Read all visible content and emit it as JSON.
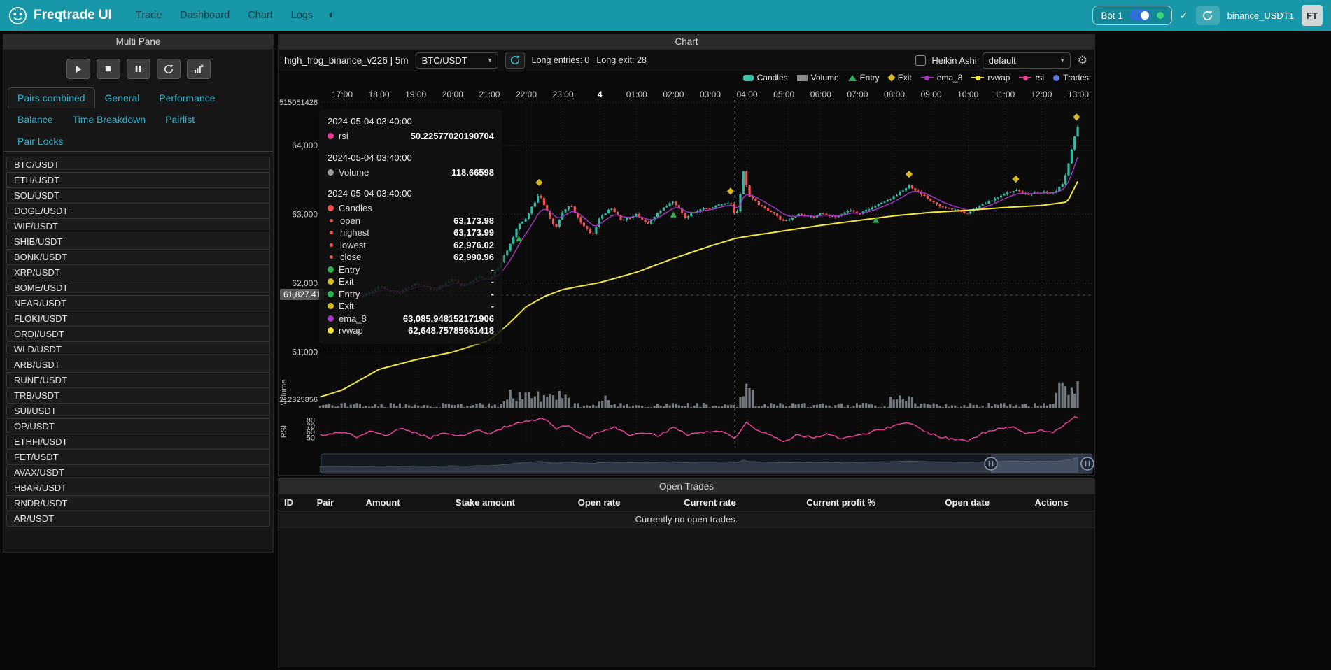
{
  "navbar": {
    "brand": "Freqtrade UI",
    "items": [
      "Trade",
      "Dashboard",
      "Chart",
      "Logs"
    ],
    "bot_label": "Bot 1",
    "check": "✓",
    "exchange_label": "binance_USDT1",
    "avatar": "FT"
  },
  "sidebar": {
    "header": "Multi Pane",
    "controls": [
      "play",
      "stop",
      "pause",
      "reload",
      "chart-remove"
    ],
    "tabs": [
      "Pairs combined",
      "General",
      "Performance",
      "Balance",
      "Time Breakdown",
      "Pairlist",
      "Pair Locks"
    ],
    "active_tab": "Pairs combined",
    "pairs": [
      "BTC/USDT",
      "ETH/USDT",
      "SOL/USDT",
      "DOGE/USDT",
      "WIF/USDT",
      "SHIB/USDT",
      "BONK/USDT",
      "XRP/USDT",
      "BOME/USDT",
      "NEAR/USDT",
      "FLOKI/USDT",
      "ORDI/USDT",
      "WLD/USDT",
      "ARB/USDT",
      "RUNE/USDT",
      "TRB/USDT",
      "SUI/USDT",
      "OP/USDT",
      "ETHFI/USDT",
      "FET/USDT",
      "AVAX/USDT",
      "HBAR/USDT",
      "RNDR/USDT",
      "AR/USDT"
    ]
  },
  "chart": {
    "header": "Chart",
    "strategy_label": "high_frog_binance_v226 | 5m",
    "pair": "BTC/USDT",
    "long_entries": "Long entries: 0",
    "long_exits": "Long exit: 28",
    "heikin_ashi": "Heikin Ashi",
    "plot_config": "default",
    "legend": [
      {
        "label": "Candles",
        "color": "#3fc1ae",
        "shape": "candles"
      },
      {
        "label": "Volume",
        "color": "#8d8d8d",
        "shape": "rect"
      },
      {
        "label": "Entry",
        "color": "#2db253",
        "shape": "triangle"
      },
      {
        "label": "Exit",
        "color": "#d8ba25",
        "shape": "diamond"
      },
      {
        "label": "ema_8",
        "color": "#a637c8",
        "shape": "line"
      },
      {
        "label": "rvwap",
        "color": "#f2e63c",
        "shape": "line"
      },
      {
        "label": "rsi",
        "color": "#e83e9c",
        "shape": "line"
      },
      {
        "label": "Trades",
        "color": "#5b7ce0",
        "shape": "circle"
      }
    ],
    "x_ticks": [
      "17:00",
      "18:00",
      "19:00",
      "20:00",
      "21:00",
      "22:00",
      "23:00",
      "4",
      "01:00",
      "02:00",
      "03:00",
      "04:00",
      "05:00",
      "06:00",
      "07:00",
      "08:00",
      "09:00",
      "10:00",
      "11:00",
      "12:00",
      "13:00"
    ],
    "y_ticks": [
      {
        "label": "64,000",
        "price": 64000
      },
      {
        "label": "63,000",
        "price": 63000
      },
      {
        "label": "62,000",
        "price": 62000
      },
      {
        "label": "61,000",
        "price": 61000
      }
    ],
    "y_top_label": "515051426",
    "y_volume_label": "212325856",
    "rsi_ticks": [
      {
        "label": "80",
        "value": 80
      },
      {
        "label": "70",
        "value": 70
      },
      {
        "label": "60",
        "value": 60
      },
      {
        "label": "50",
        "value": 50
      }
    ],
    "volume_axis_title": "Volume",
    "rsi_axis_title": "RSI",
    "crosshair_price": "61,827.41",
    "tooltip": {
      "sections": [
        {
          "timestamp": "2024-05-04 03:40:00",
          "rows": [
            {
              "dot": "#e83e9c",
              "label": "rsi",
              "value": "50.22577020190704"
            }
          ]
        },
        {
          "timestamp": "2024-05-04 03:40:00",
          "rows": [
            {
              "dot": "#9e9e9e",
              "label": "Volume",
              "value": "118.66598"
            }
          ]
        },
        {
          "timestamp": "2024-05-04 03:40:00",
          "rows": [
            {
              "dot": "#f05350",
              "label": "Candles",
              "value": ""
            },
            {
              "dot": "#f05350",
              "small": true,
              "label": "open",
              "value": "63,173.98"
            },
            {
              "dot": "#f05350",
              "small": true,
              "label": "highest",
              "value": "63,173.99"
            },
            {
              "dot": "#f05350",
              "small": true,
              "label": "lowest",
              "value": "62,976.02"
            },
            {
              "dot": "#f05350",
              "small": true,
              "label": "close",
              "value": "62,990.96"
            },
            {
              "dot": "#2db253",
              "label": "Entry",
              "value": "-"
            },
            {
              "dot": "#d8ba25",
              "label": "Exit",
              "value": "-"
            },
            {
              "dot": "#2db253",
              "label": "Entry",
              "value": "-"
            },
            {
              "dot": "#d8ba25",
              "label": "Exit",
              "value": "-"
            },
            {
              "dot": "#a637c8",
              "label": "ema_8",
              "value": "63,085.948152171906"
            },
            {
              "dot": "#f2e63c",
              "label": "rvwap",
              "value": "62,648.75785661418"
            }
          ]
        }
      ]
    }
  },
  "chart_data": {
    "type": "candlestick",
    "timeframe": "5m",
    "t_start": -0.6,
    "t_end": 20.05,
    "candles_per_hour": 12,
    "colors": {
      "up": "#2ebda5",
      "down": "#f05350",
      "ema": "#a637c8",
      "rvwap": "#f2e63c",
      "rsi": "#e83e9c",
      "volume": "#9aa0a8"
    },
    "close_anchors": [
      [
        -0.6,
        61850
      ],
      [
        0,
        61900
      ],
      [
        0.5,
        61800
      ],
      [
        1,
        61950
      ],
      [
        1.5,
        61850
      ],
      [
        2,
        62000
      ],
      [
        2.5,
        61900
      ],
      [
        3,
        62050
      ],
      [
        3.3,
        61950
      ],
      [
        3.7,
        62100
      ],
      [
        4,
        62050
      ],
      [
        4.2,
        62200
      ],
      [
        4.5,
        62500
      ],
      [
        4.8,
        62850
      ],
      [
        5,
        62950
      ],
      [
        5.2,
        63150
      ],
      [
        5.35,
        63300
      ],
      [
        5.6,
        63000
      ],
      [
        5.8,
        62800
      ],
      [
        6,
        63050
      ],
      [
        6.2,
        63150
      ],
      [
        6.5,
        62850
      ],
      [
        6.8,
        62700
      ],
      [
        7,
        62950
      ],
      [
        7.3,
        63100
      ],
      [
        7.6,
        62900
      ],
      [
        8,
        63000
      ],
      [
        8.3,
        62850
      ],
      [
        8.6,
        63050
      ],
      [
        9,
        63200
      ],
      [
        9.3,
        62950
      ],
      [
        9.6,
        63050
      ],
      [
        10,
        63100
      ],
      [
        10.3,
        63150
      ],
      [
        10.55,
        63174
      ],
      [
        10.67,
        62990
      ],
      [
        10.75,
        63050
      ],
      [
        10.9,
        63620
      ],
      [
        11.05,
        63280
      ],
      [
        11.3,
        63150
      ],
      [
        11.6,
        63050
      ],
      [
        12,
        62900
      ],
      [
        12.4,
        63000
      ],
      [
        12.8,
        62950
      ],
      [
        13,
        63020
      ],
      [
        13.4,
        62950
      ],
      [
        13.8,
        63060
      ],
      [
        14,
        63000
      ],
      [
        14.5,
        63120
      ],
      [
        15,
        63260
      ],
      [
        15.4,
        63420
      ],
      [
        15.7,
        63300
      ],
      [
        16,
        63200
      ],
      [
        16.3,
        63100
      ],
      [
        16.7,
        63060
      ],
      [
        17,
        63020
      ],
      [
        17.3,
        63120
      ],
      [
        17.7,
        63220
      ],
      [
        18,
        63300
      ],
      [
        18.3,
        63350
      ],
      [
        18.6,
        63280
      ],
      [
        19,
        63330
      ],
      [
        19.3,
        63300
      ],
      [
        19.6,
        63450
      ],
      [
        19.8,
        63900
      ],
      [
        19.95,
        64250
      ],
      [
        20.05,
        64300
      ]
    ],
    "rvwap_anchors": [
      [
        -0.6,
        60350
      ],
      [
        0,
        60450
      ],
      [
        1,
        60750
      ],
      [
        1.5,
        60820
      ],
      [
        2,
        60890
      ],
      [
        3,
        61000
      ],
      [
        4,
        61170
      ],
      [
        4.5,
        61400
      ],
      [
        5,
        61660
      ],
      [
        5.5,
        61810
      ],
      [
        6,
        61910
      ],
      [
        7,
        62010
      ],
      [
        8,
        62160
      ],
      [
        9,
        62360
      ],
      [
        10,
        62540
      ],
      [
        10.67,
        62649
      ],
      [
        11,
        62680
      ],
      [
        12,
        62760
      ],
      [
        13,
        62840
      ],
      [
        14,
        62910
      ],
      [
        15,
        62980
      ],
      [
        16,
        63030
      ],
      [
        17,
        63060
      ],
      [
        18,
        63100
      ],
      [
        19,
        63130
      ],
      [
        19.7,
        63180
      ],
      [
        20.05,
        63550
      ]
    ],
    "rsi_anchors": [
      [
        -0.6,
        55
      ],
      [
        0,
        60
      ],
      [
        0.4,
        52
      ],
      [
        0.8,
        62
      ],
      [
        1.2,
        55
      ],
      [
        1.6,
        66
      ],
      [
        2,
        58
      ],
      [
        2.4,
        50
      ],
      [
        2.8,
        60
      ],
      [
        3.2,
        52
      ],
      [
        3.6,
        64
      ],
      [
        4,
        58
      ],
      [
        4.4,
        68
      ],
      [
        4.8,
        75
      ],
      [
        5.2,
        80
      ],
      [
        5.5,
        83
      ],
      [
        5.8,
        65
      ],
      [
        6.1,
        72
      ],
      [
        6.4,
        60
      ],
      [
        6.7,
        50
      ],
      [
        7,
        62
      ],
      [
        7.4,
        68
      ],
      [
        7.8,
        55
      ],
      [
        8.2,
        60
      ],
      [
        8.6,
        52
      ],
      [
        9,
        70
      ],
      [
        9.4,
        55
      ],
      [
        9.8,
        60
      ],
      [
        10.2,
        63
      ],
      [
        10.67,
        50
      ],
      [
        11,
        78
      ],
      [
        11.3,
        62
      ],
      [
        11.6,
        55
      ],
      [
        12,
        45
      ],
      [
        12.4,
        55
      ],
      [
        12.8,
        50
      ],
      [
        13.2,
        58
      ],
      [
        13.6,
        48
      ],
      [
        14,
        55
      ],
      [
        14.5,
        62
      ],
      [
        15,
        70
      ],
      [
        15.4,
        76
      ],
      [
        15.8,
        62
      ],
      [
        16.2,
        52
      ],
      [
        16.6,
        48
      ],
      [
        17,
        45
      ],
      [
        17.4,
        58
      ],
      [
        17.8,
        65
      ],
      [
        18.2,
        70
      ],
      [
        18.6,
        58
      ],
      [
        19,
        64
      ],
      [
        19.3,
        58
      ],
      [
        19.6,
        72
      ],
      [
        19.9,
        85
      ],
      [
        20.05,
        82
      ]
    ],
    "volume_spikes": [
      [
        4.4,
        6.2,
        70
      ],
      [
        6.9,
        7.3,
        40
      ],
      [
        10.8,
        11.2,
        110
      ],
      [
        14.9,
        15.5,
        45
      ],
      [
        19.4,
        20.05,
        120
      ]
    ],
    "entry_marker_times": [
      4.8,
      9.0,
      14.5
    ],
    "exit_marker_times": [
      5.35,
      10.55,
      15.4,
      18.3,
      19.95
    ],
    "crosshair_t": 10.67
  },
  "open_trades": {
    "header": "Open Trades",
    "columns": [
      "ID",
      "Pair",
      "Amount",
      "Stake amount",
      "Open rate",
      "Current rate",
      "Current profit %",
      "Open date",
      "Actions"
    ],
    "empty": "Currently no open trades."
  }
}
